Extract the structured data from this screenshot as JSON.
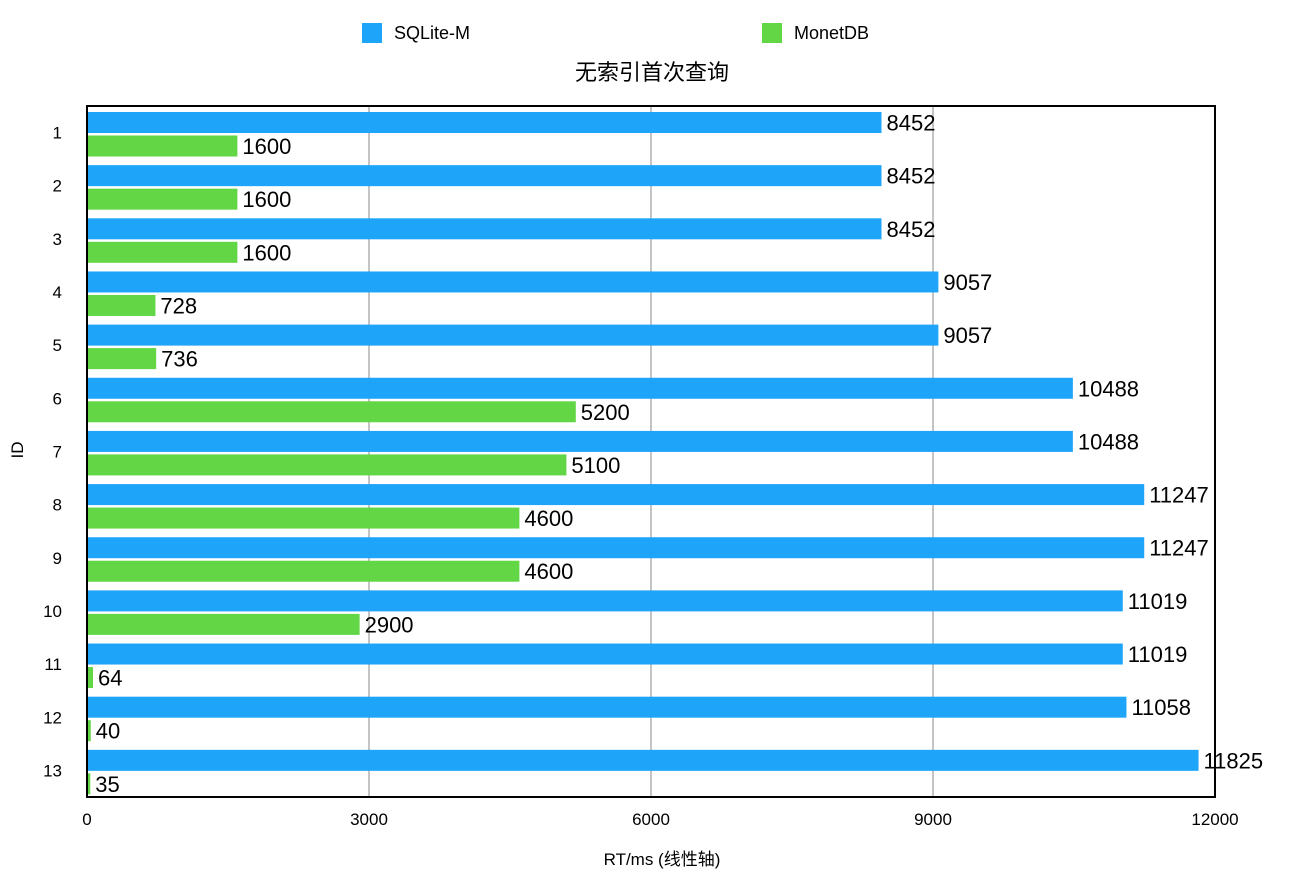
{
  "chart_data": {
    "type": "bar",
    "orientation": "horizontal",
    "title": "无索引首次查询",
    "xlabel": "RT/ms (线性轴)",
    "ylabel": "ID",
    "xlim": [
      0,
      12000
    ],
    "xticks": [
      "0",
      "3000",
      "6000",
      "9000",
      "12000"
    ],
    "grid": true,
    "legend_position": "top",
    "categories": [
      "1",
      "2",
      "3",
      "4",
      "5",
      "6",
      "7",
      "8",
      "9",
      "10",
      "11",
      "12",
      "13"
    ],
    "series": [
      {
        "name": "SQLite-M",
        "color": "#1EA4F9",
        "values": [
          8452,
          8452,
          8452,
          9057,
          9057,
          10488,
          10488,
          11247,
          11247,
          11019,
          11019,
          11058,
          11825
        ]
      },
      {
        "name": "MonetDB",
        "color": "#62D645",
        "values": [
          1600,
          1600,
          1600,
          728,
          736,
          5200,
          5100,
          4600,
          4600,
          2900,
          64,
          40,
          35
        ]
      }
    ]
  }
}
